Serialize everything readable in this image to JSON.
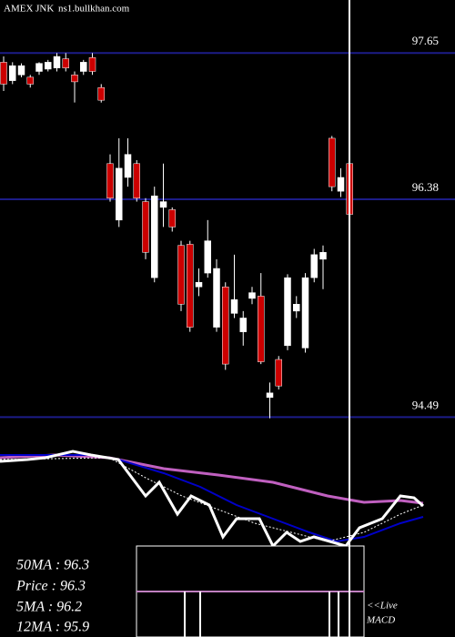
{
  "header": {
    "symbol": "AMEX  JNK",
    "site": "ns1.bullkhan.com"
  },
  "chart_data": {
    "type": "candlestick",
    "ylim": [
      94.24,
      98.11
    ],
    "yticks": [
      97.65,
      96.38,
      94.49
    ],
    "grid": true,
    "up_color": "#ffffff",
    "down_color": "#cc0000",
    "grid_color": "#1c1c88",
    "open": [
      97.57,
      97.41,
      97.46,
      97.44,
      97.49,
      97.51,
      97.52,
      97.6,
      97.46,
      97.49,
      97.61,
      97.35,
      96.69,
      96.2,
      96.57,
      96.69,
      96.36,
      95.7,
      96.31,
      96.29,
      95.98,
      95.99,
      95.62,
      95.74,
      95.27,
      95.62,
      95.39,
      95.23,
      95.52,
      95.54,
      94.66,
      94.99,
      95.11,
      95.41,
      95.09,
      95.7,
      95.86,
      96.91,
      96.45,
      96.69
    ],
    "high": [
      97.62,
      97.57,
      97.56,
      97.46,
      97.57,
      97.59,
      97.65,
      97.65,
      97.49,
      97.59,
      97.65,
      97.38,
      96.77,
      96.91,
      96.91,
      96.72,
      96.39,
      96.49,
      96.69,
      96.31,
      96.02,
      96.02,
      95.78,
      96.2,
      95.86,
      95.66,
      95.9,
      95.41,
      95.62,
      95.74,
      94.79,
      95.02,
      95.73,
      95.54,
      95.74,
      95.95,
      95.98,
      96.93,
      96.65,
      96.72
    ],
    "low": [
      97.32,
      97.38,
      97.44,
      97.35,
      97.46,
      97.49,
      97.49,
      97.49,
      97.22,
      97.46,
      97.46,
      97.22,
      96.36,
      96.14,
      96.49,
      96.36,
      95.86,
      95.66,
      96.14,
      96.1,
      95.41,
      95.23,
      95.54,
      95.7,
      95.23,
      94.9,
      95.35,
      95.11,
      95.47,
      94.95,
      94.48,
      94.73,
      95.07,
      95.35,
      95.05,
      95.66,
      95.6,
      96.45,
      96.4,
      96.2
    ],
    "close": [
      97.38,
      97.54,
      97.54,
      97.38,
      97.56,
      97.57,
      97.62,
      97.52,
      97.4,
      97.57,
      97.49,
      97.24,
      96.39,
      96.65,
      96.77,
      96.39,
      95.92,
      96.41,
      96.36,
      96.14,
      95.47,
      95.27,
      95.66,
      96.02,
      95.78,
      94.95,
      95.51,
      95.35,
      95.57,
      94.97,
      94.7,
      94.76,
      95.7,
      95.47,
      95.7,
      95.9,
      95.92,
      96.49,
      96.57,
      96.25
    ]
  },
  "info": {
    "ma50": "50MA : 96.3",
    "price": "Price  : 96.3",
    "ma5": "5MA : 96.2",
    "ma12": "12MA : 95.9",
    "live": "<<Live",
    "macd": "MACD"
  }
}
